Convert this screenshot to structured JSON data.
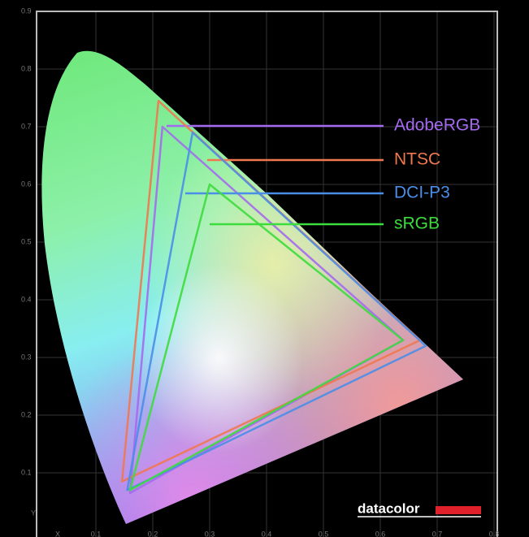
{
  "chart_data": {
    "type": "line",
    "x_label": "X",
    "y_label": "Y",
    "watermark": "datacolor",
    "xlim": [
      0,
      0.8
    ],
    "ylim": [
      0,
      0.9
    ],
    "xticks": [
      0.1,
      0.2,
      0.3,
      0.4,
      0.5,
      0.6,
      0.7,
      0.8
    ],
    "yticks": [
      0.1,
      0.2,
      0.3,
      0.4,
      0.5,
      0.6,
      0.7,
      0.8,
      0.9
    ],
    "grid": true,
    "series": [
      {
        "name": "AdobeRGB",
        "color": "#a46af0",
        "x": [
          0.64,
          0.217,
          0.16
        ],
        "values": [
          0.33,
          0.7,
          0.065
        ]
      },
      {
        "name": "NTSC",
        "color": "#f07850",
        "x": [
          0.67,
          0.21,
          0.146
        ],
        "values": [
          0.33,
          0.745,
          0.085
        ]
      },
      {
        "name": "DCI-P3",
        "color": "#4a8ee8",
        "x": [
          0.68,
          0.27,
          0.155
        ],
        "values": [
          0.32,
          0.69,
          0.07
        ]
      },
      {
        "name": "sRGB",
        "color": "#3ddc3d",
        "x": [
          0.64,
          0.3,
          0.16
        ],
        "values": [
          0.33,
          0.6,
          0.07
        ]
      }
    ]
  }
}
